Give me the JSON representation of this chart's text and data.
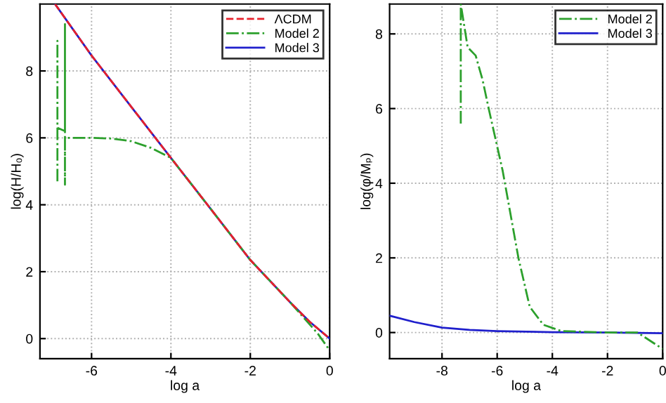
{
  "chart_data": [
    {
      "type": "line",
      "xlabel": "log a",
      "ylabel": "log(H/H₀)",
      "xlim": [
        -7.3,
        0
      ],
      "ylim": [
        -0.6,
        10
      ],
      "xticks": [
        -6,
        -4,
        -2,
        0
      ],
      "yticks": [
        0,
        2,
        4,
        6,
        8
      ],
      "grid": true,
      "legend": "top right",
      "series": [
        {
          "name": "ΛCDM",
          "color": "#e8202a",
          "line_style": "dashed",
          "x": [
            -6.92,
            -6,
            -5,
            -4,
            -3,
            -2,
            -1,
            -0.5,
            0
          ],
          "values": [
            10,
            8.46,
            6.93,
            5.4,
            3.88,
            2.35,
            1.09,
            0.5,
            0
          ]
        },
        {
          "name": "Model 2",
          "color": "#2ca02c",
          "line_style": "dashdot",
          "x": [
            -6.86,
            -6.86,
            -6.86,
            -6.67,
            -6.67,
            -6.67,
            -6.67,
            -6,
            -5.5,
            -5,
            -4.5,
            -4,
            -3,
            -2,
            -1,
            -0.3,
            0
          ],
          "values": [
            4.7,
            8.9,
            6.3,
            6.2,
            9.4,
            4.6,
            6.0,
            6.0,
            5.98,
            5.9,
            5.7,
            5.4,
            3.88,
            2.35,
            1.09,
            0.15,
            -0.35
          ]
        },
        {
          "name": "Model 3",
          "color": "#1f1fcc",
          "line_style": "solid",
          "x": [
            -6.92,
            -6,
            -5,
            -4,
            -3,
            -2,
            -1,
            -0.5,
            0
          ],
          "values": [
            10,
            8.46,
            6.93,
            5.4,
            3.88,
            2.35,
            1.09,
            0.5,
            0
          ]
        }
      ]
    },
    {
      "type": "line",
      "xlabel": "log a",
      "ylabel": "log(φ/Mₚ)",
      "xlim": [
        -9.9,
        0
      ],
      "ylim": [
        -0.7,
        8.8
      ],
      "xticks": [
        -8,
        -6,
        -4,
        -2,
        0
      ],
      "yticks": [
        0,
        2,
        4,
        6,
        8
      ],
      "grid": true,
      "legend": "top right",
      "series": [
        {
          "name": "Model 2",
          "color": "#2ca02c",
          "line_style": "dashdot",
          "x": [
            -7.32,
            -7.32,
            -7.07,
            -6.78,
            -6.53,
            -6.29,
            -5.8,
            -5.23,
            -4.82,
            -4.33,
            -3.68,
            -2,
            -0.91,
            0
          ],
          "values": [
            5.6,
            8.8,
            7.64,
            7.42,
            6.77,
            5.94,
            4.33,
            2.0,
            0.69,
            0.21,
            0.04,
            0,
            0,
            -0.44
          ]
        },
        {
          "name": "Model 3",
          "color": "#1f1fcc",
          "line_style": "solid",
          "x": [
            -9.9,
            -9,
            -8,
            -7,
            -6,
            -4,
            -2,
            0
          ],
          "values": [
            0.45,
            0.28,
            0.13,
            0.07,
            0.04,
            0.01,
            0,
            -0.02
          ]
        }
      ]
    }
  ]
}
